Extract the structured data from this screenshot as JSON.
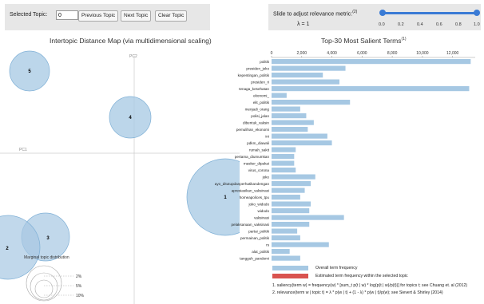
{
  "controls": {
    "selected_label": "Selected Topic:",
    "selected_value": "0",
    "prev_label": "Previous Topic",
    "next_label": "Next Topic",
    "clear_label": "Clear Topic"
  },
  "slider": {
    "label": "Slide to adjust relevance metric:",
    "footnote": "(2)",
    "lambda_text": "λ = 1",
    "value": 1.0,
    "ticks": [
      "0.0",
      "0.2",
      "0.4",
      "0.6",
      "0.8",
      "1.0"
    ]
  },
  "left_panel": {
    "title": "Intertopic Distance Map (via multidimensional scaling)",
    "pc1": "PC1",
    "pc2": "PC2",
    "topics": [
      "5",
      "4",
      "1",
      "2",
      "3"
    ],
    "marginal_title": "Marginal topic distribution",
    "marginal_labels": [
      "2%",
      "5%",
      "10%"
    ]
  },
  "right_panel": {
    "title": "Top-30 Most Salient Terms",
    "title_sup": "(1)",
    "legend_overall": "Overall term frequency",
    "legend_estimated": "Estimated term frequency within the selected topic",
    "formula1": "1. saliency(term w) = frequency(w) * [sum_t p(t | w) * log(p(t | w)/p(t))] for topics t; see Chuang et. al (2012)",
    "formula2": "2. relevance(term w | topic t) = λ * p(w | t) + (1 - λ) * p(w | t)/p(w); see Sievert & Shirley (2014)",
    "colors": {
      "overall": "#a6c8e3",
      "estimated": "#d9534f"
    }
  },
  "chart_data": {
    "type": "bar",
    "title": "Top-30 Most Salient Terms",
    "orientation": "horizontal",
    "xlim": [
      0,
      13500
    ],
    "x_ticks": [
      "0",
      "2,000",
      "4,000",
      "6,000",
      "8,000",
      "10,000",
      "12,000"
    ],
    "x_tick_values": [
      0,
      2000,
      4000,
      6000,
      8000,
      10000,
      12000
    ],
    "categories": [
      "politik",
      "presiden_joko",
      "kepentingan_politik",
      "presiden_ri",
      "tenaga_kesehatan",
      "ekonomi_",
      "elit_politik",
      "menjadi_orang",
      "polisi_jalan",
      "dibentuk_vaksin",
      "pemulihan_ekonomi",
      "ini",
      "pdkm_diawali",
      "rumah_sakit",
      "pertama_diumumkan",
      "masker_dipakai",
      "virus_corona",
      "joko",
      "ayo_ditutupdanperhatikandengan",
      "apresiasikan_vaksinasi",
      "homeapolices_tpu",
      "joko_widodo",
      "widodo",
      "vaksinasi",
      "pelaksanaan_vaksinasi",
      "partai_politik",
      "permainan_politik",
      "rs",
      "alat_politik",
      "tangguh_pandemi"
    ],
    "series": [
      {
        "values": [
          13200,
          4900,
          3400,
          4500,
          13100,
          1000,
          5200,
          1900,
          2300,
          2800,
          2400,
          3700,
          4000,
          1600,
          1500,
          1500,
          1600,
          2900,
          2600,
          2200,
          1900,
          2600,
          2500,
          4800,
          2500,
          1700,
          1900,
          3800,
          1200,
          1900
        ]
      }
    ]
  }
}
